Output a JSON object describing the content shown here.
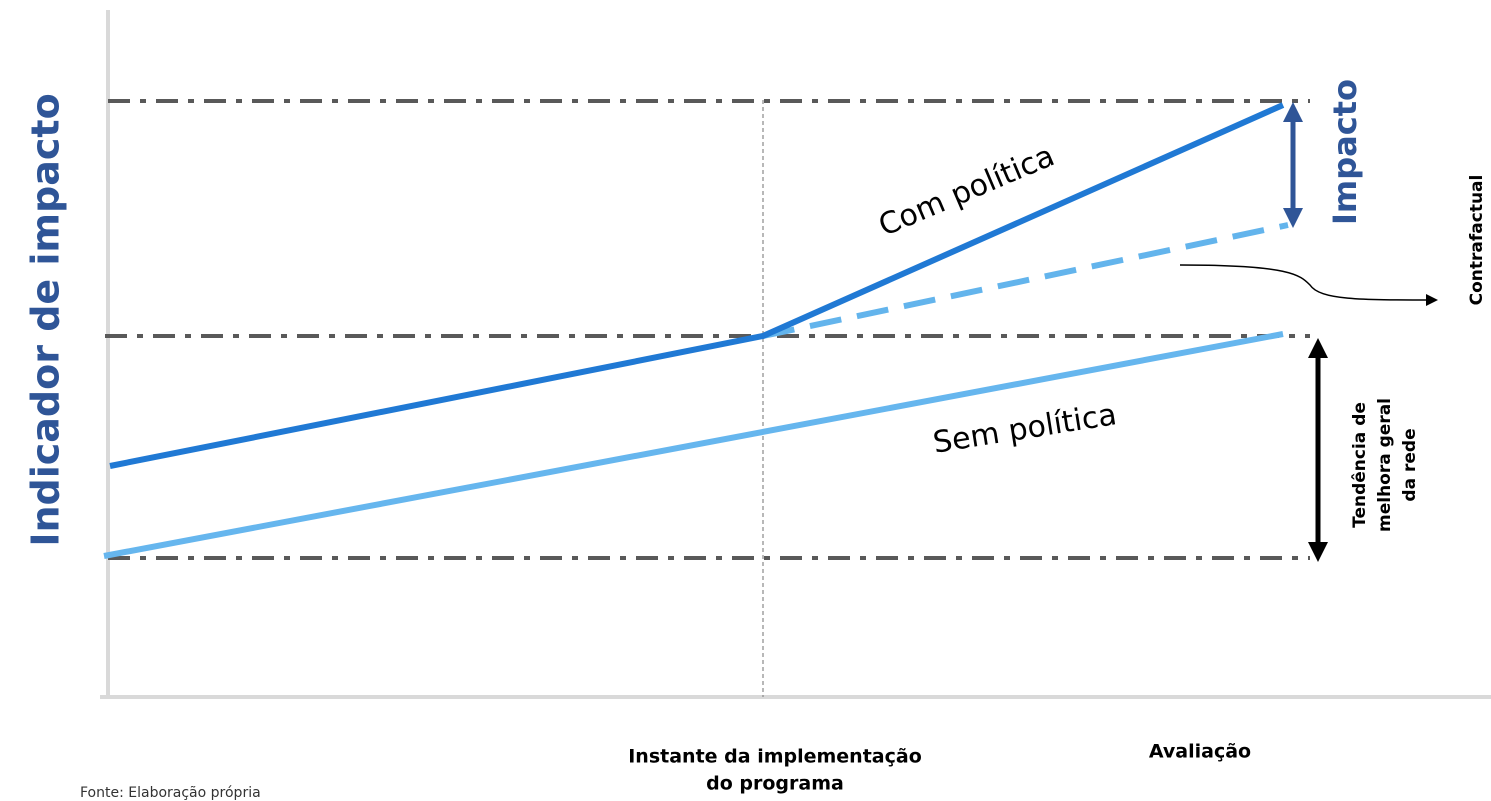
{
  "axis_title": "Indicador de impacto",
  "impact_label": "Impacto",
  "with_policy": "Com política",
  "without_policy": "Sem política",
  "counterfactual": "Contrafactual",
  "trend": [
    "Tendência de",
    "melhora geral",
    "da rede"
  ],
  "x_labels": {
    "implementation": [
      "Instante da implementação",
      "do programa"
    ],
    "evaluation": "Avaliação"
  },
  "source": "Fonte: Elaboração própria"
}
